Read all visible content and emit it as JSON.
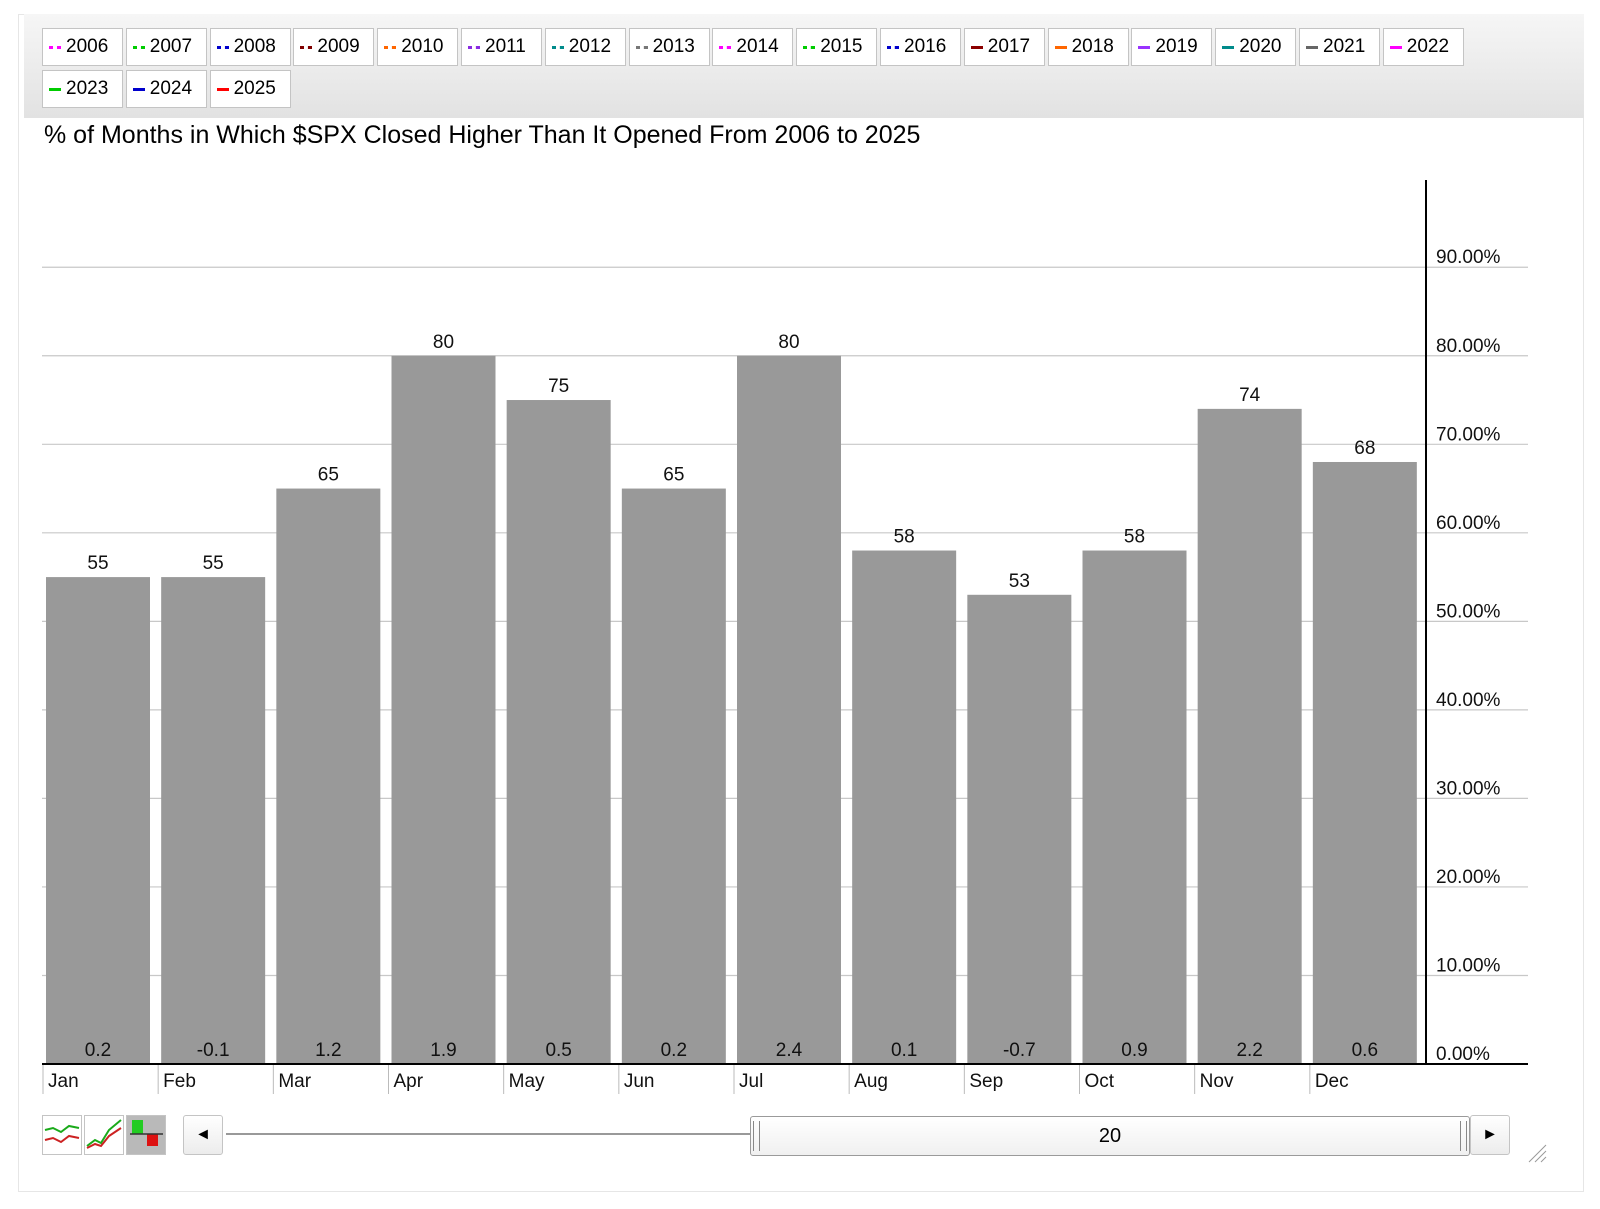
{
  "legend": {
    "items": [
      {
        "label": "2006",
        "color": "#ff00ff",
        "style": "dotted"
      },
      {
        "label": "2007",
        "color": "#00cc00",
        "style": "dotted"
      },
      {
        "label": "2008",
        "color": "#0000cc",
        "style": "dotted"
      },
      {
        "label": "2009",
        "color": "#800000",
        "style": "dotted"
      },
      {
        "label": "2010",
        "color": "#ff6600",
        "style": "dotted"
      },
      {
        "label": "2011",
        "color": "#8a2be2",
        "style": "dotted"
      },
      {
        "label": "2012",
        "color": "#008b8b",
        "style": "dotted"
      },
      {
        "label": "2013",
        "color": "#777777",
        "style": "dotted"
      },
      {
        "label": "2014",
        "color": "#ff00ff",
        "style": "dotted"
      },
      {
        "label": "2015",
        "color": "#00cc00",
        "style": "dotted"
      },
      {
        "label": "2016",
        "color": "#0000cc",
        "style": "dotted"
      },
      {
        "label": "2017",
        "color": "#8b0000",
        "style": "solid"
      },
      {
        "label": "2018",
        "color": "#ff6600",
        "style": "solid"
      },
      {
        "label": "2019",
        "color": "#9933ff",
        "style": "solid"
      },
      {
        "label": "2020",
        "color": "#008b8b",
        "style": "solid"
      },
      {
        "label": "2021",
        "color": "#666666",
        "style": "solid"
      },
      {
        "label": "2022",
        "color": "#ff00ff",
        "style": "solid"
      },
      {
        "label": "2023",
        "color": "#00cc00",
        "style": "solid"
      },
      {
        "label": "2024",
        "color": "#0000cc",
        "style": "solid"
      },
      {
        "label": "2025",
        "color": "#ff0000",
        "style": "solid"
      }
    ]
  },
  "chart_data": {
    "type": "bar",
    "title": "% of Months in Which $SPX Closed Higher Than It Opened From 2006 to 2025",
    "categories": [
      "Jan",
      "Feb",
      "Mar",
      "Apr",
      "May",
      "Jun",
      "Jul",
      "Aug",
      "Sep",
      "Oct",
      "Nov",
      "Dec"
    ],
    "values": [
      55,
      55,
      65,
      80,
      75,
      65,
      80,
      58,
      53,
      58,
      74,
      68
    ],
    "value_labels": [
      "55",
      "55",
      "65",
      "80",
      "75",
      "65",
      "80",
      "58",
      "53",
      "58",
      "74",
      "68"
    ],
    "bottom_labels": [
      "0.2",
      "-0.1",
      "1.2",
      "1.9",
      "0.5",
      "0.2",
      "2.4",
      "0.1",
      "-0.7",
      "0.9",
      "2.2",
      "0.6"
    ],
    "ylim": [
      0,
      100
    ],
    "yticks": [
      0,
      10,
      20,
      30,
      40,
      50,
      60,
      70,
      80,
      90
    ],
    "ytick_labels": [
      "0.00%",
      "10.00%",
      "20.00%",
      "30.00%",
      "40.00%",
      "50.00%",
      "60.00%",
      "70.00%",
      "80.00%",
      "90.00%"
    ],
    "y_axis_side": "right",
    "grid": true,
    "bar_color": "#999999"
  },
  "controls": {
    "range_value": "20",
    "left_arrow": "◄",
    "right_arrow": "►"
  }
}
